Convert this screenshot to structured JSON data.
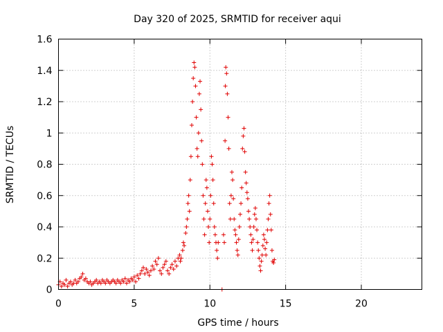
{
  "chart_data": {
    "type": "scatter",
    "title": "Day 320 of 2025, SRMTID for receiver aqui",
    "xlabel": "GPS time / hours",
    "ylabel": "SRMTID / TECUs",
    "xlim": [
      0,
      24
    ],
    "ylim": [
      0,
      1.6
    ],
    "x_ticks": [
      0,
      5,
      10,
      15,
      20
    ],
    "x_tick_labels": [
      "0",
      "5",
      "10",
      "15",
      "20"
    ],
    "y_ticks": [
      0,
      0.2,
      0.4,
      0.6,
      0.8,
      1.0,
      1.2,
      1.4,
      1.6
    ],
    "y_tick_labels": [
      "0",
      "0.2",
      "0.4",
      "0.6",
      "0.8",
      "1",
      "1.2",
      "1.4",
      "1.6"
    ],
    "grid": true,
    "marker": "plus",
    "color": "#e00000",
    "series": [
      {
        "name": "SRMTID",
        "points": [
          [
            0.0,
            0.03
          ],
          [
            0.1,
            0.05
          ],
          [
            0.2,
            0.02
          ],
          [
            0.3,
            0.04
          ],
          [
            0.4,
            0.03
          ],
          [
            0.5,
            0.06
          ],
          [
            0.6,
            0.02
          ],
          [
            0.7,
            0.04
          ],
          [
            0.8,
            0.05
          ],
          [
            0.9,
            0.03
          ],
          [
            1.0,
            0.04
          ],
          [
            1.1,
            0.06
          ],
          [
            1.2,
            0.04
          ],
          [
            1.3,
            0.05
          ],
          [
            1.4,
            0.07
          ],
          [
            1.5,
            0.08
          ],
          [
            1.6,
            0.1
          ],
          [
            1.7,
            0.06
          ],
          [
            1.8,
            0.07
          ],
          [
            1.9,
            0.05
          ],
          [
            2.0,
            0.04
          ],
          [
            2.1,
            0.05
          ],
          [
            2.2,
            0.03
          ],
          [
            2.3,
            0.04
          ],
          [
            2.4,
            0.05
          ],
          [
            2.5,
            0.06
          ],
          [
            2.6,
            0.04
          ],
          [
            2.7,
            0.05
          ],
          [
            2.8,
            0.04
          ],
          [
            2.9,
            0.06
          ],
          [
            3.0,
            0.05
          ],
          [
            3.1,
            0.04
          ],
          [
            3.2,
            0.06
          ],
          [
            3.3,
            0.05
          ],
          [
            3.4,
            0.04
          ],
          [
            3.5,
            0.05
          ],
          [
            3.6,
            0.06
          ],
          [
            3.7,
            0.05
          ],
          [
            3.8,
            0.04
          ],
          [
            3.9,
            0.06
          ],
          [
            4.0,
            0.05
          ],
          [
            4.1,
            0.04
          ],
          [
            4.2,
            0.06
          ],
          [
            4.3,
            0.05
          ],
          [
            4.4,
            0.07
          ],
          [
            4.5,
            0.04
          ],
          [
            4.6,
            0.06
          ],
          [
            4.7,
            0.05
          ],
          [
            4.8,
            0.07
          ],
          [
            4.9,
            0.06
          ],
          [
            5.0,
            0.08
          ],
          [
            5.1,
            0.05
          ],
          [
            5.2,
            0.09
          ],
          [
            5.3,
            0.07
          ],
          [
            5.4,
            0.1
          ],
          [
            5.5,
            0.12
          ],
          [
            5.6,
            0.14
          ],
          [
            5.7,
            0.1
          ],
          [
            5.8,
            0.13
          ],
          [
            5.9,
            0.11
          ],
          [
            6.0,
            0.09
          ],
          [
            6.1,
            0.12
          ],
          [
            6.2,
            0.15
          ],
          [
            6.3,
            0.13
          ],
          [
            6.4,
            0.18
          ],
          [
            6.5,
            0.16
          ],
          [
            6.6,
            0.2
          ],
          [
            6.7,
            0.12
          ],
          [
            6.8,
            0.1
          ],
          [
            6.9,
            0.14
          ],
          [
            7.0,
            0.16
          ],
          [
            7.1,
            0.18
          ],
          [
            7.2,
            0.12
          ],
          [
            7.3,
            0.1
          ],
          [
            7.4,
            0.14
          ],
          [
            7.5,
            0.16
          ],
          [
            7.6,
            0.13
          ],
          [
            7.7,
            0.18
          ],
          [
            7.8,
            0.15
          ],
          [
            7.9,
            0.2
          ],
          [
            8.0,
            0.22
          ],
          [
            8.05,
            0.18
          ],
          [
            8.1,
            0.2
          ],
          [
            8.2,
            0.25
          ],
          [
            8.25,
            0.3
          ],
          [
            8.3,
            0.28
          ],
          [
            8.4,
            0.36
          ],
          [
            8.45,
            0.4
          ],
          [
            8.5,
            0.45
          ],
          [
            8.55,
            0.55
          ],
          [
            8.6,
            0.6
          ],
          [
            8.65,
            0.5
          ],
          [
            8.7,
            0.7
          ],
          [
            8.75,
            0.85
          ],
          [
            8.8,
            1.05
          ],
          [
            8.85,
            1.2
          ],
          [
            8.9,
            1.35
          ],
          [
            8.95,
            1.45
          ],
          [
            9.0,
            1.42
          ],
          [
            9.05,
            1.3
          ],
          [
            9.1,
            1.1
          ],
          [
            9.15,
            0.9
          ],
          [
            9.2,
            0.85
          ],
          [
            9.25,
            1.0
          ],
          [
            9.3,
            1.25
          ],
          [
            9.35,
            1.33
          ],
          [
            9.4,
            1.15
          ],
          [
            9.45,
            0.95
          ],
          [
            9.5,
            0.8
          ],
          [
            9.55,
            0.6
          ],
          [
            9.6,
            0.45
          ],
          [
            9.65,
            0.35
          ],
          [
            9.7,
            0.55
          ],
          [
            9.75,
            0.7
          ],
          [
            9.8,
            0.65
          ],
          [
            9.85,
            0.5
          ],
          [
            9.9,
            0.4
          ],
          [
            9.95,
            0.3
          ],
          [
            10.0,
            0.45
          ],
          [
            10.05,
            0.6
          ],
          [
            10.1,
            0.85
          ],
          [
            10.15,
            0.8
          ],
          [
            10.2,
            0.7
          ],
          [
            10.25,
            0.55
          ],
          [
            10.3,
            0.4
          ],
          [
            10.35,
            0.35
          ],
          [
            10.4,
            0.3
          ],
          [
            10.45,
            0.25
          ],
          [
            10.5,
            0.2
          ],
          [
            10.55,
            0.3
          ],
          [
            10.8,
            0.0
          ],
          [
            10.9,
            0.35
          ],
          [
            10.95,
            0.3
          ],
          [
            11.0,
            0.95
          ],
          [
            11.02,
            1.3
          ],
          [
            11.05,
            1.42
          ],
          [
            11.1,
            1.38
          ],
          [
            11.15,
            1.25
          ],
          [
            11.2,
            1.1
          ],
          [
            11.25,
            0.9
          ],
          [
            11.3,
            0.55
          ],
          [
            11.35,
            0.45
          ],
          [
            11.4,
            0.6
          ],
          [
            11.45,
            0.75
          ],
          [
            11.5,
            0.7
          ],
          [
            11.55,
            0.58
          ],
          [
            11.6,
            0.45
          ],
          [
            11.65,
            0.38
          ],
          [
            11.7,
            0.35
          ],
          [
            11.75,
            0.3
          ],
          [
            11.8,
            0.25
          ],
          [
            11.85,
            0.22
          ],
          [
            11.9,
            0.32
          ],
          [
            11.95,
            0.4
          ],
          [
            12.0,
            0.48
          ],
          [
            12.05,
            0.55
          ],
          [
            12.1,
            0.65
          ],
          [
            12.15,
            0.9
          ],
          [
            12.2,
            0.98
          ],
          [
            12.25,
            1.03
          ],
          [
            12.3,
            0.88
          ],
          [
            12.35,
            0.75
          ],
          [
            12.4,
            0.68
          ],
          [
            12.45,
            0.62
          ],
          [
            12.5,
            0.58
          ],
          [
            12.55,
            0.5
          ],
          [
            12.6,
            0.45
          ],
          [
            12.65,
            0.4
          ],
          [
            12.7,
            0.35
          ],
          [
            12.75,
            0.3
          ],
          [
            12.8,
            0.25
          ],
          [
            12.85,
            0.32
          ],
          [
            12.9,
            0.4
          ],
          [
            12.95,
            0.48
          ],
          [
            13.0,
            0.52
          ],
          [
            13.05,
            0.45
          ],
          [
            13.1,
            0.38
          ],
          [
            13.15,
            0.3
          ],
          [
            13.2,
            0.25
          ],
          [
            13.25,
            0.2
          ],
          [
            13.3,
            0.15
          ],
          [
            13.35,
            0.12
          ],
          [
            13.4,
            0.18
          ],
          [
            13.45,
            0.22
          ],
          [
            13.5,
            0.28
          ],
          [
            13.55,
            0.35
          ],
          [
            13.6,
            0.32
          ],
          [
            13.65,
            0.26
          ],
          [
            13.7,
            0.22
          ],
          [
            13.75,
            0.3
          ],
          [
            13.8,
            0.38
          ],
          [
            13.85,
            0.45
          ],
          [
            13.9,
            0.55
          ],
          [
            13.95,
            0.6
          ],
          [
            14.0,
            0.48
          ],
          [
            14.05,
            0.38
          ],
          [
            14.1,
            0.25
          ],
          [
            14.15,
            0.18
          ],
          [
            14.2,
            0.17
          ],
          [
            14.25,
            0.19
          ]
        ]
      }
    ]
  }
}
